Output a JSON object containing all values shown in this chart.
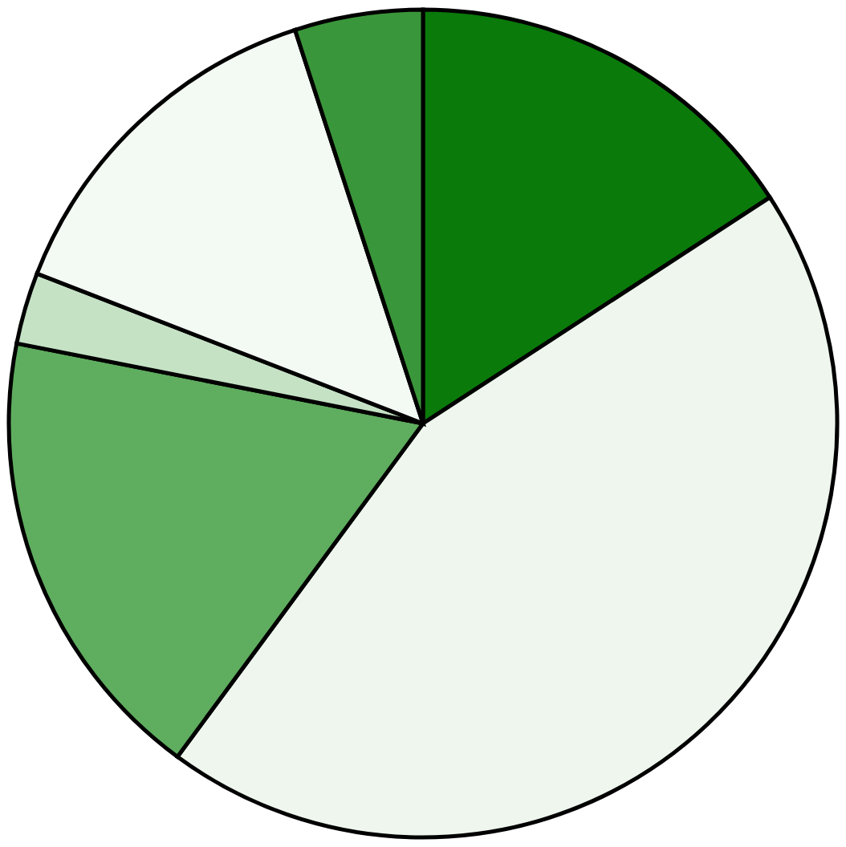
{
  "chart_data": {
    "type": "pie",
    "categories": [
      null,
      null,
      null,
      null,
      null,
      null
    ],
    "values": [
      15.8,
      44.3,
      18.0,
      2.8,
      14.1,
      5.0
    ],
    "colors": [
      "#0a7a0a",
      "#eef6ee",
      "#5fad5f",
      "#c5e2c5",
      "#f3f9f3",
      "#3a963a"
    ]
  }
}
